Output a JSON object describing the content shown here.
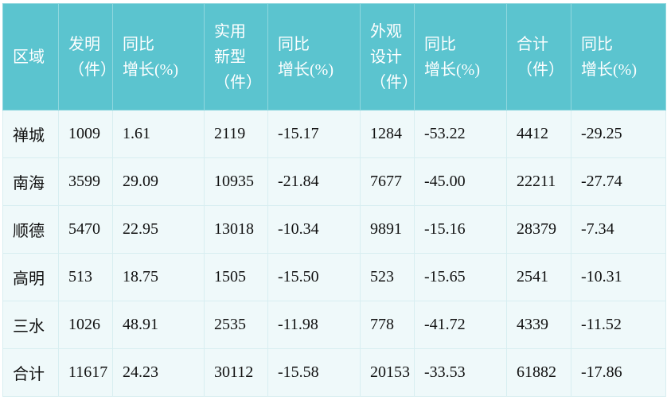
{
  "table": {
    "header": [
      [
        "区域"
      ],
      [
        "发明",
        "（件）"
      ],
      [
        "同比",
        "增长(%)"
      ],
      [
        "实用",
        "新型",
        "（件）"
      ],
      [
        "同比",
        "增长(%)"
      ],
      [
        "外观",
        "设计",
        "（件）"
      ],
      [
        "同比",
        "增长(%)"
      ],
      [
        "合计",
        "（件）"
      ],
      [
        "同比",
        "增长(%)"
      ]
    ],
    "rows": [
      [
        "禅城",
        "1009",
        "1.61",
        "2119",
        "-15.17",
        "1284",
        "-53.22",
        "4412",
        "-29.25"
      ],
      [
        "南海",
        "3599",
        "29.09",
        "10935",
        "-21.84",
        "7677",
        "-45.00",
        "22211",
        "-27.74"
      ],
      [
        "顺德",
        "5470",
        "22.95",
        "13018",
        "-10.34",
        "9891",
        "-15.16",
        "28379",
        "-7.34"
      ],
      [
        "高明",
        "513",
        "18.75",
        "1505",
        "-15.50",
        "523",
        "-15.65",
        "2541",
        "-10.31"
      ],
      [
        "三水",
        "1026",
        "48.91",
        "2535",
        "-11.98",
        "778",
        "-41.72",
        "4339",
        "-11.52"
      ],
      [
        "合计",
        "11617",
        "24.23",
        "30112",
        "-15.58",
        "20153",
        "-33.53",
        "61882",
        "-17.86"
      ]
    ]
  }
}
